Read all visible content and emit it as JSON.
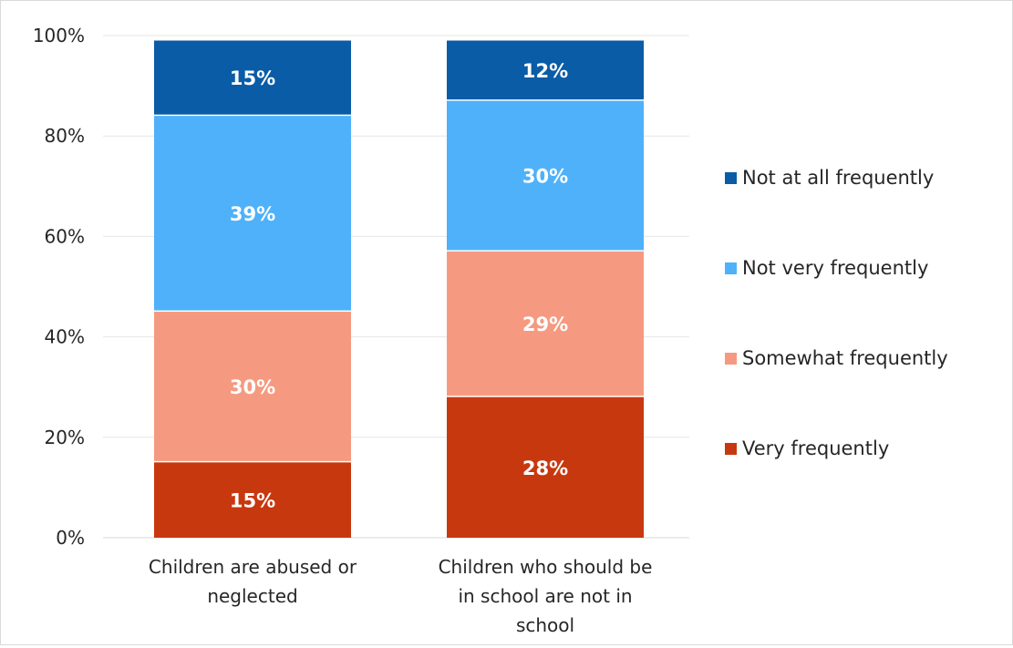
{
  "chart_data": {
    "type": "bar",
    "stacked": true,
    "categories": [
      "Children are abused or neglected",
      "Children who should be in school are not in school"
    ],
    "category_lines": [
      [
        "Children are abused or",
        "neglected"
      ],
      [
        "Children who should be",
        "in school are not in",
        "school"
      ]
    ],
    "series": [
      {
        "name": "Very frequently",
        "color": "#c8380f",
        "values": [
          15,
          28
        ],
        "labels": [
          "15%",
          "28%"
        ]
      },
      {
        "name": "Somewhat frequently",
        "color": "#f59a80",
        "values": [
          30,
          29
        ],
        "labels": [
          "30%",
          "29%"
        ]
      },
      {
        "name": "Not very frequently",
        "color": "#4eb1fa",
        "values": [
          39,
          30
        ],
        "labels": [
          "39%",
          "30%"
        ]
      },
      {
        "name": "Not at all frequently",
        "color": "#0a5ca6",
        "values": [
          15,
          12
        ],
        "labels": [
          "15%",
          "12%"
        ]
      }
    ],
    "y_ticks": [
      "0%",
      "20%",
      "40%",
      "60%",
      "80%",
      "100%"
    ],
    "ylim": [
      0,
      100
    ],
    "grid": true,
    "legend_position": "right"
  }
}
